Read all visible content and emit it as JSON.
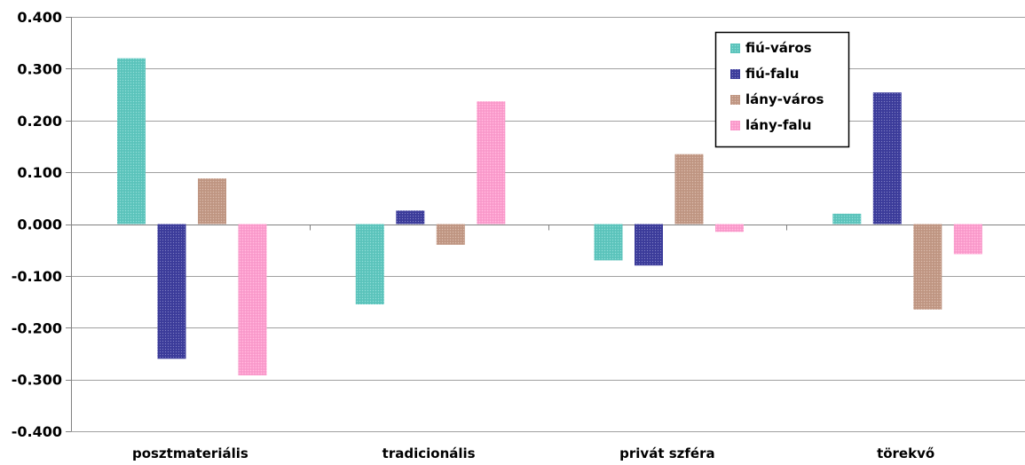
{
  "chart_data": {
    "type": "bar",
    "categories": [
      "posztmateriális",
      "tradicionális",
      "privát szféra",
      "törekvő"
    ],
    "series": [
      {
        "name": "fiú-város",
        "values": [
          0.32,
          -0.155,
          -0.07,
          0.02
        ],
        "color": "#5fc8c0"
      },
      {
        "name": "fiú-falu",
        "values": [
          -0.26,
          0.026,
          -0.08,
          0.254
        ],
        "color": "#3e3e9e"
      },
      {
        "name": "lány-város",
        "values": [
          0.088,
          -0.04,
          0.135,
          -0.165
        ],
        "color": "#c49a86"
      },
      {
        "name": "lány-falu",
        "values": [
          -0.292,
          0.237,
          -0.015,
          -0.058
        ],
        "color": "#ff9fd0"
      }
    ],
    "ylim": [
      -0.4,
      0.4
    ],
    "yticks": [
      0.4,
      0.3,
      0.2,
      0.1,
      0.0,
      -0.1,
      -0.2,
      -0.3,
      -0.4
    ],
    "ytick_labels": [
      "0.400",
      "0.300",
      "0.200",
      "0.100",
      "0.000",
      "-0.100",
      "-0.200",
      "-0.300",
      "-0.400"
    ],
    "title": "",
    "xlabel": "",
    "ylabel": "",
    "grid": "horizontal",
    "legend_position": "top-right"
  }
}
